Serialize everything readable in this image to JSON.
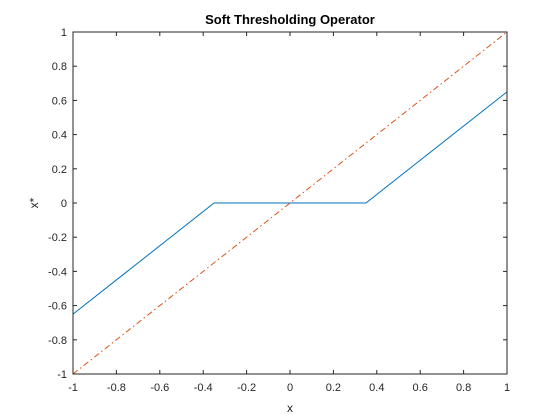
{
  "chart_data": {
    "type": "line",
    "title": "Soft Thresholding Operator",
    "xlabel": "x",
    "ylabel": "x*",
    "xlim": [
      -1,
      1
    ],
    "ylim": [
      -1,
      1
    ],
    "xticks": [
      -1,
      -0.8,
      -0.6,
      -0.4,
      -0.2,
      0,
      0.2,
      0.4,
      0.6,
      0.8,
      1
    ],
    "yticks": [
      -1,
      -0.8,
      -0.6,
      -0.4,
      -0.2,
      0,
      0.2,
      0.4,
      0.6,
      0.8,
      1
    ],
    "xtick_labels": [
      "-1",
      "-0.8",
      "-0.6",
      "-0.4",
      "-0.2",
      "0",
      "0.2",
      "0.4",
      "0.6",
      "0.8",
      "1"
    ],
    "ytick_labels": [
      "-1",
      "-0.8",
      "-0.6",
      "-0.4",
      "-0.2",
      "0",
      "0.2",
      "0.4",
      "0.6",
      "0.8",
      "1"
    ],
    "grid": false,
    "legend": "none",
    "series": [
      {
        "x": [
          -1,
          -0.35,
          0.35,
          1
        ],
        "y": [
          -0.65,
          0,
          0,
          0.65
        ],
        "color": "#0072BD",
        "style": "solid"
      },
      {
        "x": [
          -1,
          1
        ],
        "y": [
          -1,
          1
        ],
        "color": "#D95319",
        "style": "dash-dot"
      }
    ]
  }
}
